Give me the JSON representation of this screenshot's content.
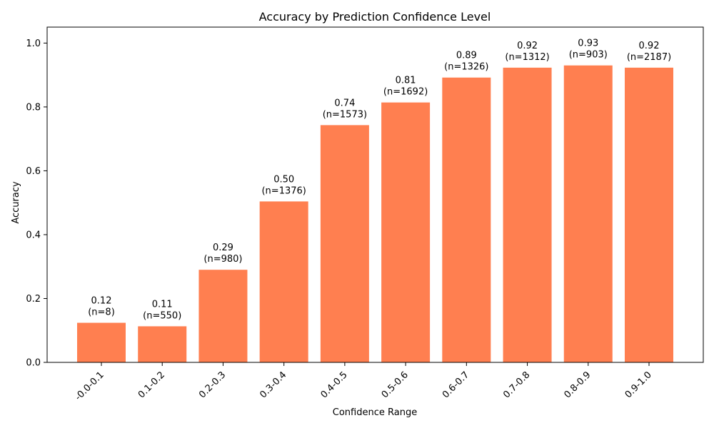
{
  "chart_data": {
    "type": "bar",
    "title": "Accuracy by Prediction Confidence Level",
    "xlabel": "Confidence Range",
    "ylabel": "Accuracy",
    "categories": [
      "-0.0-0.1",
      "0.1-0.2",
      "0.2-0.3",
      "0.3-0.4",
      "0.4-0.5",
      "0.5-0.6",
      "0.6-0.7",
      "0.7-0.8",
      "0.8-0.9",
      "0.9-1.0"
    ],
    "values": [
      0.124,
      0.113,
      0.29,
      0.504,
      0.743,
      0.814,
      0.892,
      0.923,
      0.93,
      0.923
    ],
    "value_labels": [
      "0.12",
      "0.11",
      "0.29",
      "0.50",
      "0.74",
      "0.81",
      "0.89",
      "0.92",
      "0.93",
      "0.92"
    ],
    "count_labels": [
      "(n=8)",
      "(n=550)",
      "(n=980)",
      "(n=1376)",
      "(n=1573)",
      "(n=1692)",
      "(n=1326)",
      "(n=1312)",
      "(n=903)",
      "(n=2187)"
    ],
    "ylim": [
      0,
      1.05
    ],
    "yticks": [
      "0.0",
      "0.2",
      "0.4",
      "0.6",
      "0.8",
      "1.0"
    ],
    "grid": false,
    "colors": {
      "bar": "#ff7f50"
    }
  }
}
